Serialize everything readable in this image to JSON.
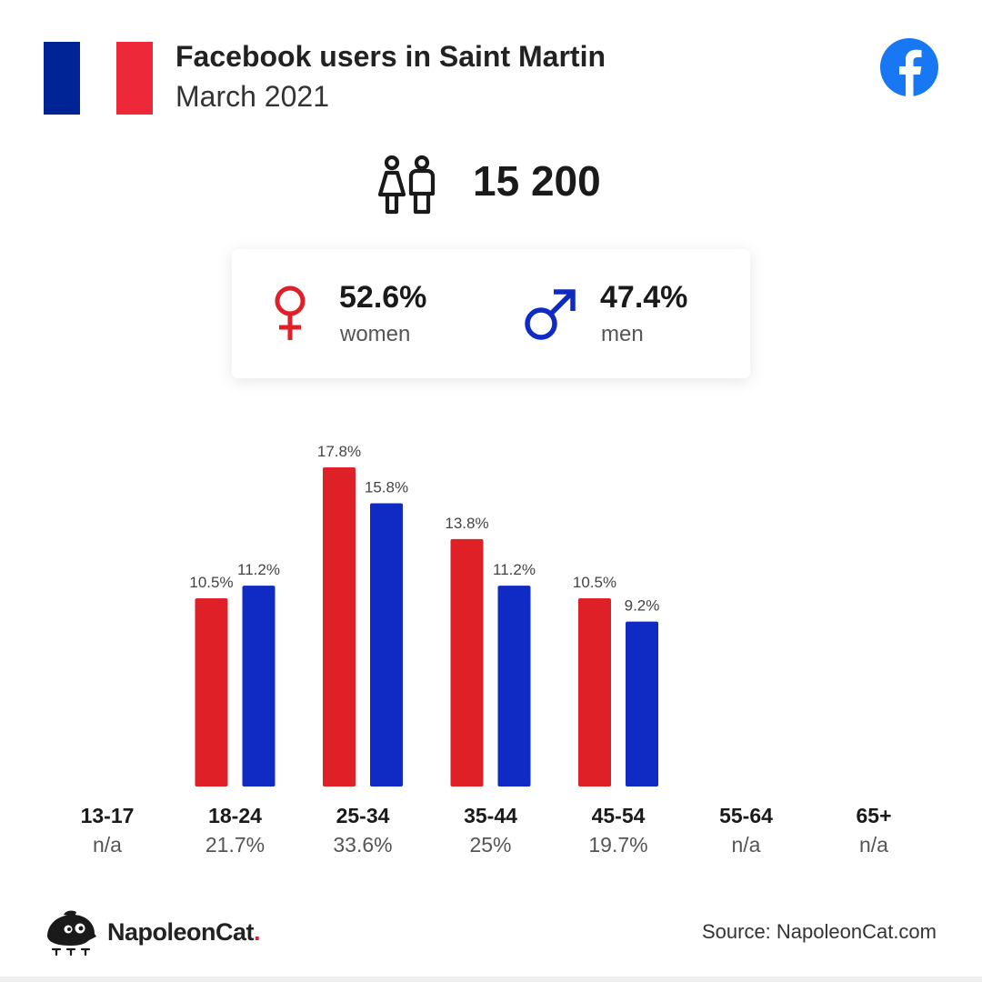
{
  "header": {
    "title": "Facebook users in Saint Martin",
    "subtitle": "March 2021"
  },
  "flag": {
    "left_color": "#002395",
    "right_color": "#ED2939"
  },
  "total_users": "15 200",
  "gender": {
    "women_value": "52.6%",
    "women_label": "women",
    "men_value": "47.4%",
    "men_label": "men"
  },
  "colors": {
    "women": "#E02027",
    "men": "#0F2BC4",
    "facebook": "#1877F2"
  },
  "chart_data": {
    "type": "bar",
    "categories": [
      "13-17",
      "18-24",
      "25-34",
      "35-44",
      "45-54",
      "55-64",
      "65+"
    ],
    "category_totals": [
      "n/a",
      "21.7%",
      "33.6%",
      "25%",
      "19.7%",
      "n/a",
      "n/a"
    ],
    "series": [
      {
        "name": "women",
        "values": [
          null,
          10.5,
          17.8,
          13.8,
          10.5,
          null,
          null
        ],
        "labels": [
          "",
          "10.5%",
          "17.8%",
          "13.8%",
          "10.5%",
          "",
          ""
        ]
      },
      {
        "name": "men",
        "values": [
          null,
          11.2,
          15.8,
          11.2,
          9.2,
          null,
          null
        ],
        "labels": [
          "",
          "11.2%",
          "15.8%",
          "11.2%",
          "9.2%",
          "",
          ""
        ]
      }
    ],
    "title": "",
    "xlabel": "",
    "ylabel": "",
    "ylim": [
      0,
      17.8
    ],
    "grid": false,
    "legend": "none"
  },
  "footer": {
    "brand": "NapoleonCat",
    "brand_dot": ".",
    "source": "Source: NapoleonCat.com"
  }
}
